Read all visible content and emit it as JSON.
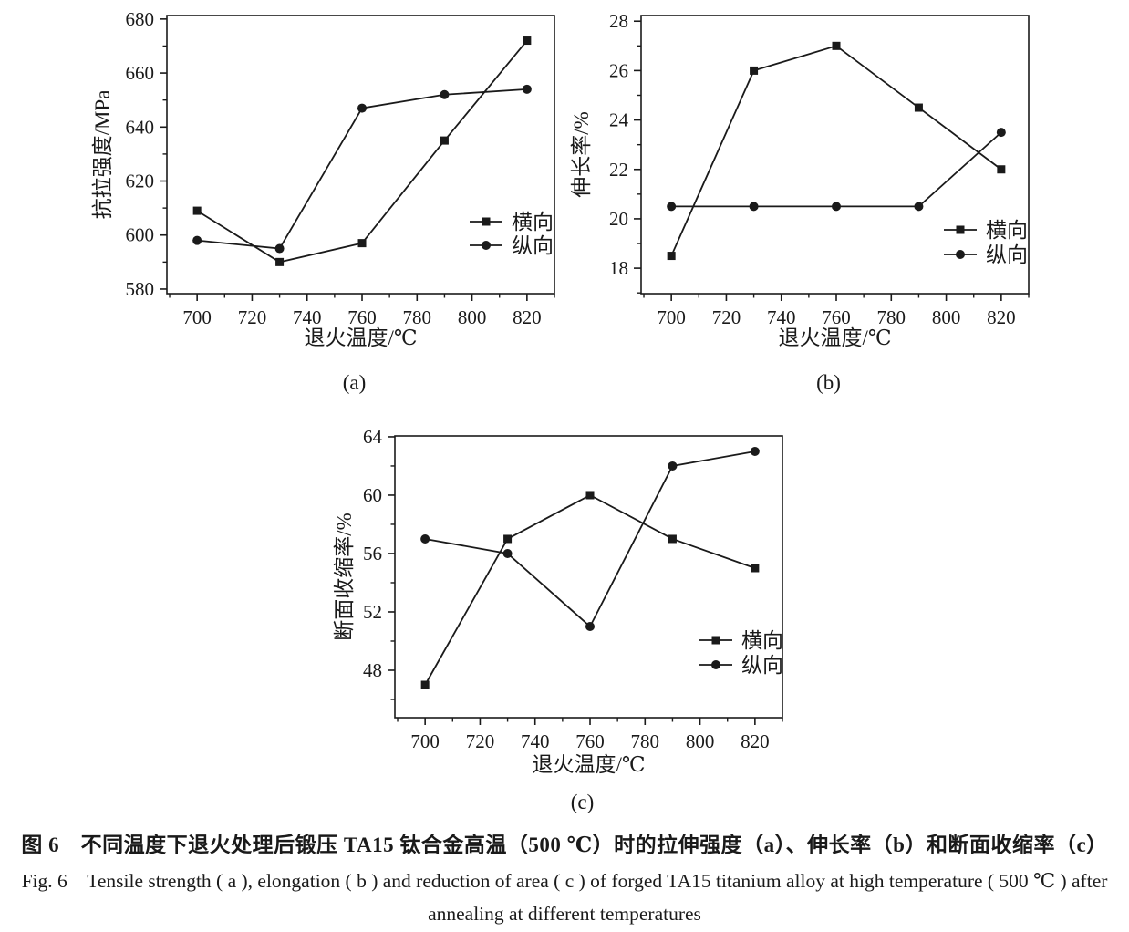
{
  "figure": {
    "caption_zh": "图 6　不同温度下退火处理后锻压 TA15 钛合金高温（500 ℃）时的拉伸强度（a）、伸长率（b）和断面收缩率（c）",
    "caption_en_line1": "Fig. 6　Tensile strength ( a ), elongation ( b ) and reduction of area ( c ) of forged TA15 titanium alloy at high temperature ( 500 ℃ ) after",
    "caption_en_line2": "annealing at different temperatures"
  },
  "chart_data": [
    {
      "id": "a",
      "type": "line",
      "panel_label": "(a)",
      "xlabel": "退火温度/℃",
      "ylabel": "抗拉强度/MPa",
      "x": [
        700,
        730,
        760,
        790,
        820
      ],
      "series": [
        {
          "name": "横向",
          "marker": "square",
          "values": [
            609,
            590,
            597,
            635,
            672
          ]
        },
        {
          "name": "纵向",
          "marker": "circle",
          "values": [
            598,
            595,
            647,
            652,
            654
          ]
        }
      ],
      "xlim": [
        689,
        830
      ],
      "ylim": [
        578.3,
        681.3
      ],
      "xticks": [
        700,
        720,
        740,
        760,
        780,
        800,
        820
      ],
      "yticks": [
        580,
        600,
        620,
        640,
        660,
        680
      ],
      "x_minor_step": 10,
      "y_minor_step": 10,
      "grid": false,
      "legend_position": "inside lower right",
      "line_color": "#1a1a1a"
    },
    {
      "id": "b",
      "type": "line",
      "panel_label": "(b)",
      "xlabel": "退火温度/℃",
      "ylabel": "伸长率/%",
      "x": [
        700,
        730,
        760,
        790,
        820
      ],
      "series": [
        {
          "name": "横向",
          "marker": "square",
          "values": [
            18.5,
            26,
            27,
            24.5,
            22
          ]
        },
        {
          "name": "纵向",
          "marker": "circle",
          "values": [
            20.5,
            20.5,
            20.5,
            20.5,
            23.5
          ]
        }
      ],
      "xlim": [
        689,
        830
      ],
      "ylim": [
        16.97,
        28.23
      ],
      "xticks": [
        700,
        720,
        740,
        760,
        780,
        800,
        820
      ],
      "yticks": [
        18,
        20,
        22,
        24,
        26,
        28
      ],
      "x_minor_step": 10,
      "y_minor_step": 1,
      "grid": false,
      "legend_position": "inside lower right",
      "line_color": "#1a1a1a"
    },
    {
      "id": "c",
      "type": "line",
      "panel_label": "(c)",
      "xlabel": "退火温度/℃",
      "ylabel": "断面收缩率/%",
      "x": [
        700,
        730,
        760,
        790,
        820
      ],
      "series": [
        {
          "name": "横向",
          "marker": "square",
          "values": [
            47,
            57,
            60,
            57,
            55
          ]
        },
        {
          "name": "纵向",
          "marker": "circle",
          "values": [
            57,
            56,
            51,
            62,
            63
          ]
        }
      ],
      "xlim": [
        689,
        830
      ],
      "ylim": [
        44.75,
        64.06
      ],
      "xticks": [
        700,
        720,
        740,
        760,
        780,
        800,
        820
      ],
      "yticks": [
        48,
        52,
        56,
        60,
        64
      ],
      "x_minor_step": 10,
      "y_minor_step": 2,
      "grid": false,
      "legend_position": "inside lower right",
      "line_color": "#1a1a1a"
    }
  ]
}
